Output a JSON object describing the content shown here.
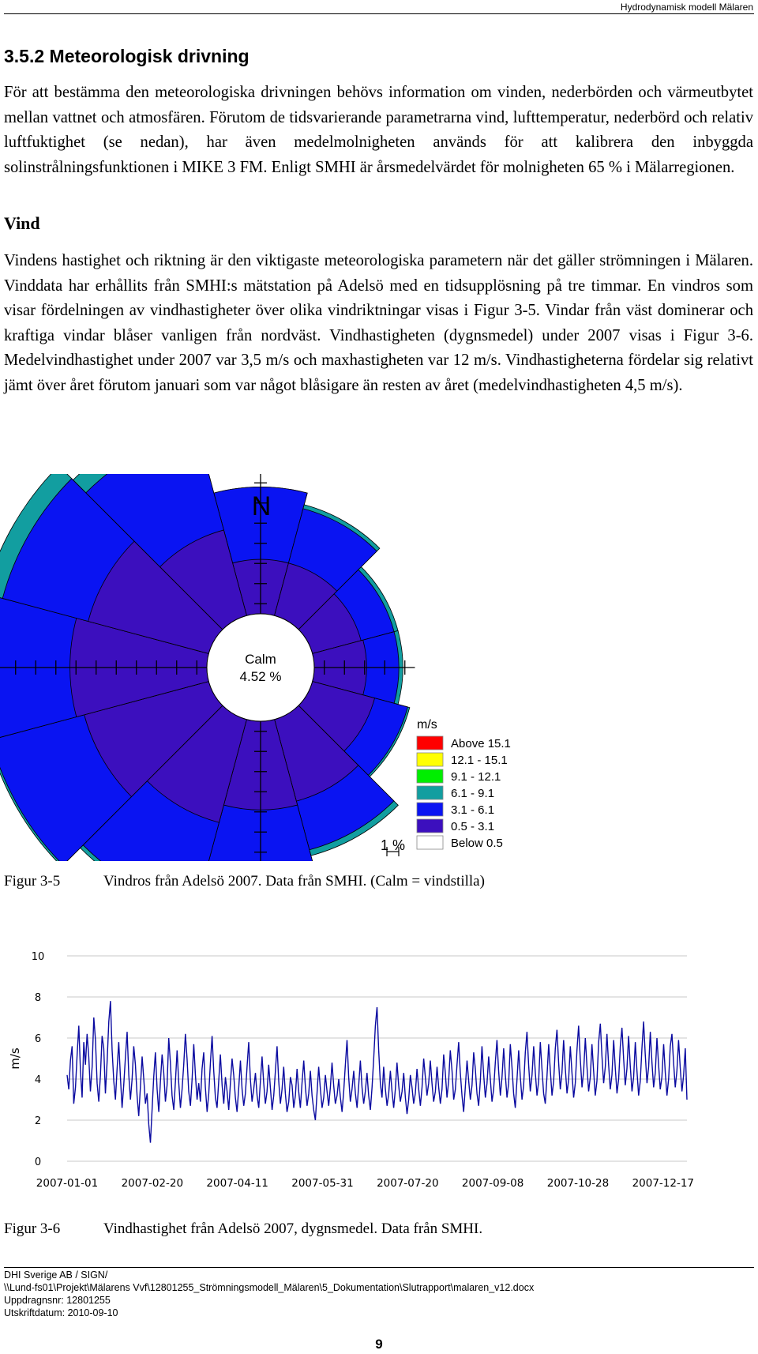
{
  "header": {
    "running_title": "Hydrodynamisk modell Mälaren"
  },
  "section": {
    "title": "3.5.2   Meteorologisk drivning"
  },
  "body": {
    "intro_paragraph": "För att bestämma den meteorologiska drivningen behövs information om vinden, nederbörden och värmeutbytet mellan vattnet och atmosfären. Förutom de tidsvarierande parametrarna vind, lufttemperatur, nederbörd och relativ luftfuktighet (se nedan), har även medelmolnigheten används för att kalibrera den inbyggda solinstrålningsfunktionen i MIKE 3 FM. Enligt SMHI är årsmedelvärdet för molnigheten 65 % i Mälarregionen.",
    "subheading_vind": "Vind",
    "vind_paragraph": "Vindens hastighet och riktning är den viktigaste meteorologiska parametern när det gäller strömningen i Mälaren. Vinddata har erhållits från SMHI:s mätstation på Adelsö med en tidsupplösning på tre timmar. En vindros som visar fördelningen av vindhastigheter över olika vindriktningar visas i Figur 3-5. Vindar från väst dominerar och kraftiga vindar blåser vanligen från nordväst. Vindhastigheten (dygnsmedel) under 2007 visas i Figur 3-6. Medelvindhastighet under 2007 var 3,5 m/s och maxhastigheten var 12 m/s. Vindhastigheterna fördelar sig relativt jämt över året förutom januari som var något blåsigare än resten av året (medelvindhastigheten 4,5 m/s)."
  },
  "figure_3_5": {
    "number": "Figur 3-5",
    "caption": "Vindros från Adelsö 2007. Data från SMHI. (Calm = vindstilla)"
  },
  "figure_3_6": {
    "number": "Figur 3-6",
    "caption": "Vindhastighet från Adelsö 2007, dygnsmedel. Data från SMHI."
  },
  "footer": {
    "line1": "DHI Sverige AB / SIGN/",
    "line2": "\\\\Lund-fs01\\Projekt\\Mälarens Vvf\\12801255_Strömningsmodell_Mälaren\\5_Dokumentation\\Slutrapport\\malaren_v12.docx",
    "line3": "Uppdragnsnr: 12801255",
    "line4": "Utskriftdatum: 2010-09-10",
    "page_number": "9"
  },
  "chart_data": [
    {
      "type": "windrose",
      "north_label": "N",
      "calm_label": "Calm",
      "calm_value": "4.52 %",
      "scale_label": "1 %",
      "legend_title": "m/s",
      "bins": [
        {
          "label": "Above 15.1",
          "color": "#ff0000"
        },
        {
          "label": "12.1 - 15.1",
          "color": "#ffff00"
        },
        {
          "label": "9.1 - 12.1",
          "color": "#00ee00"
        },
        {
          "label": "6.1 -   9.1",
          "color": "#129ea0"
        },
        {
          "label": "3.1 -   6.1",
          "color": "#0a14f2"
        },
        {
          "label": "0.5 -   3.1",
          "color": "#3c0fbe"
        },
        {
          "label": "Below    0.5",
          "color": "#ffffff"
        }
      ],
      "sector_width_deg": 30,
      "sectors": [
        {
          "direction_deg": 0,
          "cum_percent": [
            2.7,
            6.3,
            6.3
          ]
        },
        {
          "direction_deg": 30,
          "cum_percent": [
            2.7,
            5.5,
            5.7
          ]
        },
        {
          "direction_deg": 60,
          "cum_percent": [
            2.5,
            4.2,
            4.4
          ]
        },
        {
          "direction_deg": 90,
          "cum_percent": [
            2.6,
            4.2,
            4.4
          ]
        },
        {
          "direction_deg": 120,
          "cum_percent": [
            3.2,
            4.9,
            5.0
          ]
        },
        {
          "direction_deg": 150,
          "cum_percent": [
            4.2,
            6.7,
            7.0
          ]
        },
        {
          "direction_deg": 180,
          "cum_percent": [
            4.4,
            8.4,
            8.4
          ]
        },
        {
          "direction_deg": 210,
          "cum_percent": [
            5.3,
            9.8,
            10.0
          ]
        },
        {
          "direction_deg": 240,
          "cum_percent": [
            6.4,
            11.2,
            11.3
          ]
        },
        {
          "direction_deg": 270,
          "cum_percent": [
            6.8,
            12.2,
            12.7
          ]
        },
        {
          "direction_deg": 300,
          "cum_percent": [
            6.2,
            10.6,
            11.5
          ]
        },
        {
          "direction_deg": 330,
          "cum_percent": [
            4.4,
            9.6,
            10.5
          ]
        }
      ]
    },
    {
      "type": "line",
      "ylabel": "m/s",
      "ylim": [
        0,
        10
      ],
      "yticks": [
        0,
        2,
        4,
        6,
        8,
        10
      ],
      "x_tick_labels": [
        "2007-01-01",
        "2007-02-20",
        "2007-04-11",
        "2007-05-31",
        "2007-07-20",
        "2007-09-08",
        "2007-10-28",
        "2007-12-17"
      ],
      "x_start": "2007-01-01",
      "x_end": "2007-12-31",
      "color": "#0a0aa0",
      "values": [
        4.2,
        3.5,
        4.9,
        5.6,
        2.8,
        3.6,
        5.2,
        6.6,
        4.4,
        3.1,
        5.8,
        4.7,
        6.2,
        5.1,
        3.4,
        4.6,
        7.0,
        5.9,
        3.8,
        2.9,
        4.2,
        6.1,
        5.5,
        3.3,
        4.8,
        6.8,
        7.8,
        5.4,
        3.9,
        3.0,
        4.5,
        5.8,
        4.1,
        2.6,
        3.7,
        5.1,
        6.3,
        4.2,
        3.0,
        4.0,
        5.6,
        4.7,
        3.2,
        2.2,
        3.6,
        5.1,
        4.0,
        2.8,
        3.3,
        1.8,
        0.9,
        2.5,
        4.1,
        5.3,
        3.5,
        2.4,
        3.9,
        5.2,
        4.3,
        2.9,
        3.7,
        6.0,
        4.8,
        3.2,
        2.5,
        3.9,
        5.4,
        3.8,
        2.6,
        3.5,
        4.7,
        6.2,
        5.0,
        3.4,
        2.7,
        4.0,
        5.7,
        4.2,
        3.0,
        3.8,
        2.9,
        4.5,
        5.3,
        3.6,
        2.4,
        3.3,
        4.8,
        6.1,
        4.4,
        3.1,
        2.6,
        3.9,
        5.2,
        3.7,
        2.8,
        4.1,
        3.4,
        2.5,
        3.8,
        5.0,
        4.2,
        3.1,
        2.4,
        3.6,
        4.9,
        3.5,
        2.7,
        3.3,
        4.6,
        5.8,
        4.0,
        2.9,
        3.5,
        4.3,
        3.2,
        2.6,
        3.9,
        5.1,
        3.8,
        2.8,
        3.4,
        4.7,
        3.6,
        2.5,
        3.2,
        4.4,
        5.6,
        3.9,
        2.8,
        3.5,
        4.6,
        3.3,
        2.4,
        2.9,
        4.1,
        3.7,
        2.6,
        3.2,
        4.5,
        3.4,
        2.6,
        3.8,
        4.9,
        3.6,
        2.7,
        3.3,
        4.4,
        3.2,
        2.5,
        2.0,
        3.3,
        4.6,
        3.5,
        2.6,
        3.1,
        4.2,
        3.4,
        2.7,
        3.6,
        4.8,
        3.7,
        2.8,
        3.2,
        4.0,
        3.1,
        2.4,
        3.4,
        4.7,
        5.9,
        4.1,
        2.9,
        3.5,
        4.4,
        3.3,
        2.6,
        3.7,
        4.9,
        3.6,
        2.8,
        3.4,
        4.3,
        3.2,
        2.5,
        3.6,
        5.0,
        6.6,
        7.5,
        5.4,
        3.8,
        3.1,
        4.6,
        3.5,
        2.7,
        3.3,
        4.4,
        3.4,
        2.6,
        3.5,
        4.8,
        3.7,
        2.9,
        3.4,
        4.3,
        3.1,
        2.3,
        3.0,
        4.2,
        3.6,
        2.8,
        3.3,
        4.5,
        3.5,
        2.7,
        3.6,
        5.0,
        4.1,
        3.2,
        3.8,
        4.9,
        3.8,
        2.9,
        3.4,
        4.6,
        3.6,
        2.8,
        3.5,
        5.2,
        4.3,
        3.1,
        3.9,
        5.4,
        4.4,
        3.0,
        3.5,
        4.7,
        5.8,
        4.3,
        3.2,
        2.4,
        3.6,
        4.9,
        3.9,
        3.0,
        3.7,
        5.3,
        4.5,
        3.3,
        2.7,
        3.9,
        5.6,
        4.2,
        3.1,
        3.8,
        5.1,
        4.0,
        2.9,
        3.5,
        4.8,
        5.9,
        4.4,
        3.2,
        4.1,
        5.5,
        4.2,
        3.1,
        3.8,
        5.7,
        4.6,
        3.3,
        2.6,
        4.0,
        5.4,
        4.1,
        3.0,
        3.7,
        5.3,
        6.3,
        4.7,
        3.4,
        4.2,
        5.6,
        4.3,
        3.2,
        3.9,
        5.8,
        4.5,
        3.3,
        2.8,
        4.1,
        5.7,
        4.4,
        3.2,
        3.9,
        5.5,
        6.4,
        4.8,
        3.5,
        4.3,
        5.9,
        4.5,
        3.3,
        4.0,
        5.6,
        4.3,
        3.1,
        3.8,
        5.4,
        6.6,
        5.0,
        3.6,
        4.4,
        6.0,
        4.6,
        3.4,
        4.1,
        5.7,
        4.4,
        3.2,
        3.9,
        5.8,
        6.7,
        5.1,
        3.8,
        4.6,
        6.2,
        4.7,
        3.5,
        4.2,
        5.9,
        4.5,
        3.3,
        4.0,
        5.6,
        6.5,
        5.0,
        3.7,
        4.5,
        6.1,
        4.6,
        3.4,
        4.1,
        5.8,
        4.4,
        3.2,
        3.9,
        5.5,
        6.8,
        5.2,
        3.8,
        4.6,
        6.3,
        4.8,
        3.6,
        4.3,
        6.0,
        4.7,
        3.5,
        4.1,
        5.7,
        4.3,
        3.2,
        4.0,
        5.6,
        6.2,
        4.8,
        3.6,
        4.4,
        5.9,
        4.5,
        3.4,
        4.2,
        5.5,
        3.0
      ]
    }
  ]
}
